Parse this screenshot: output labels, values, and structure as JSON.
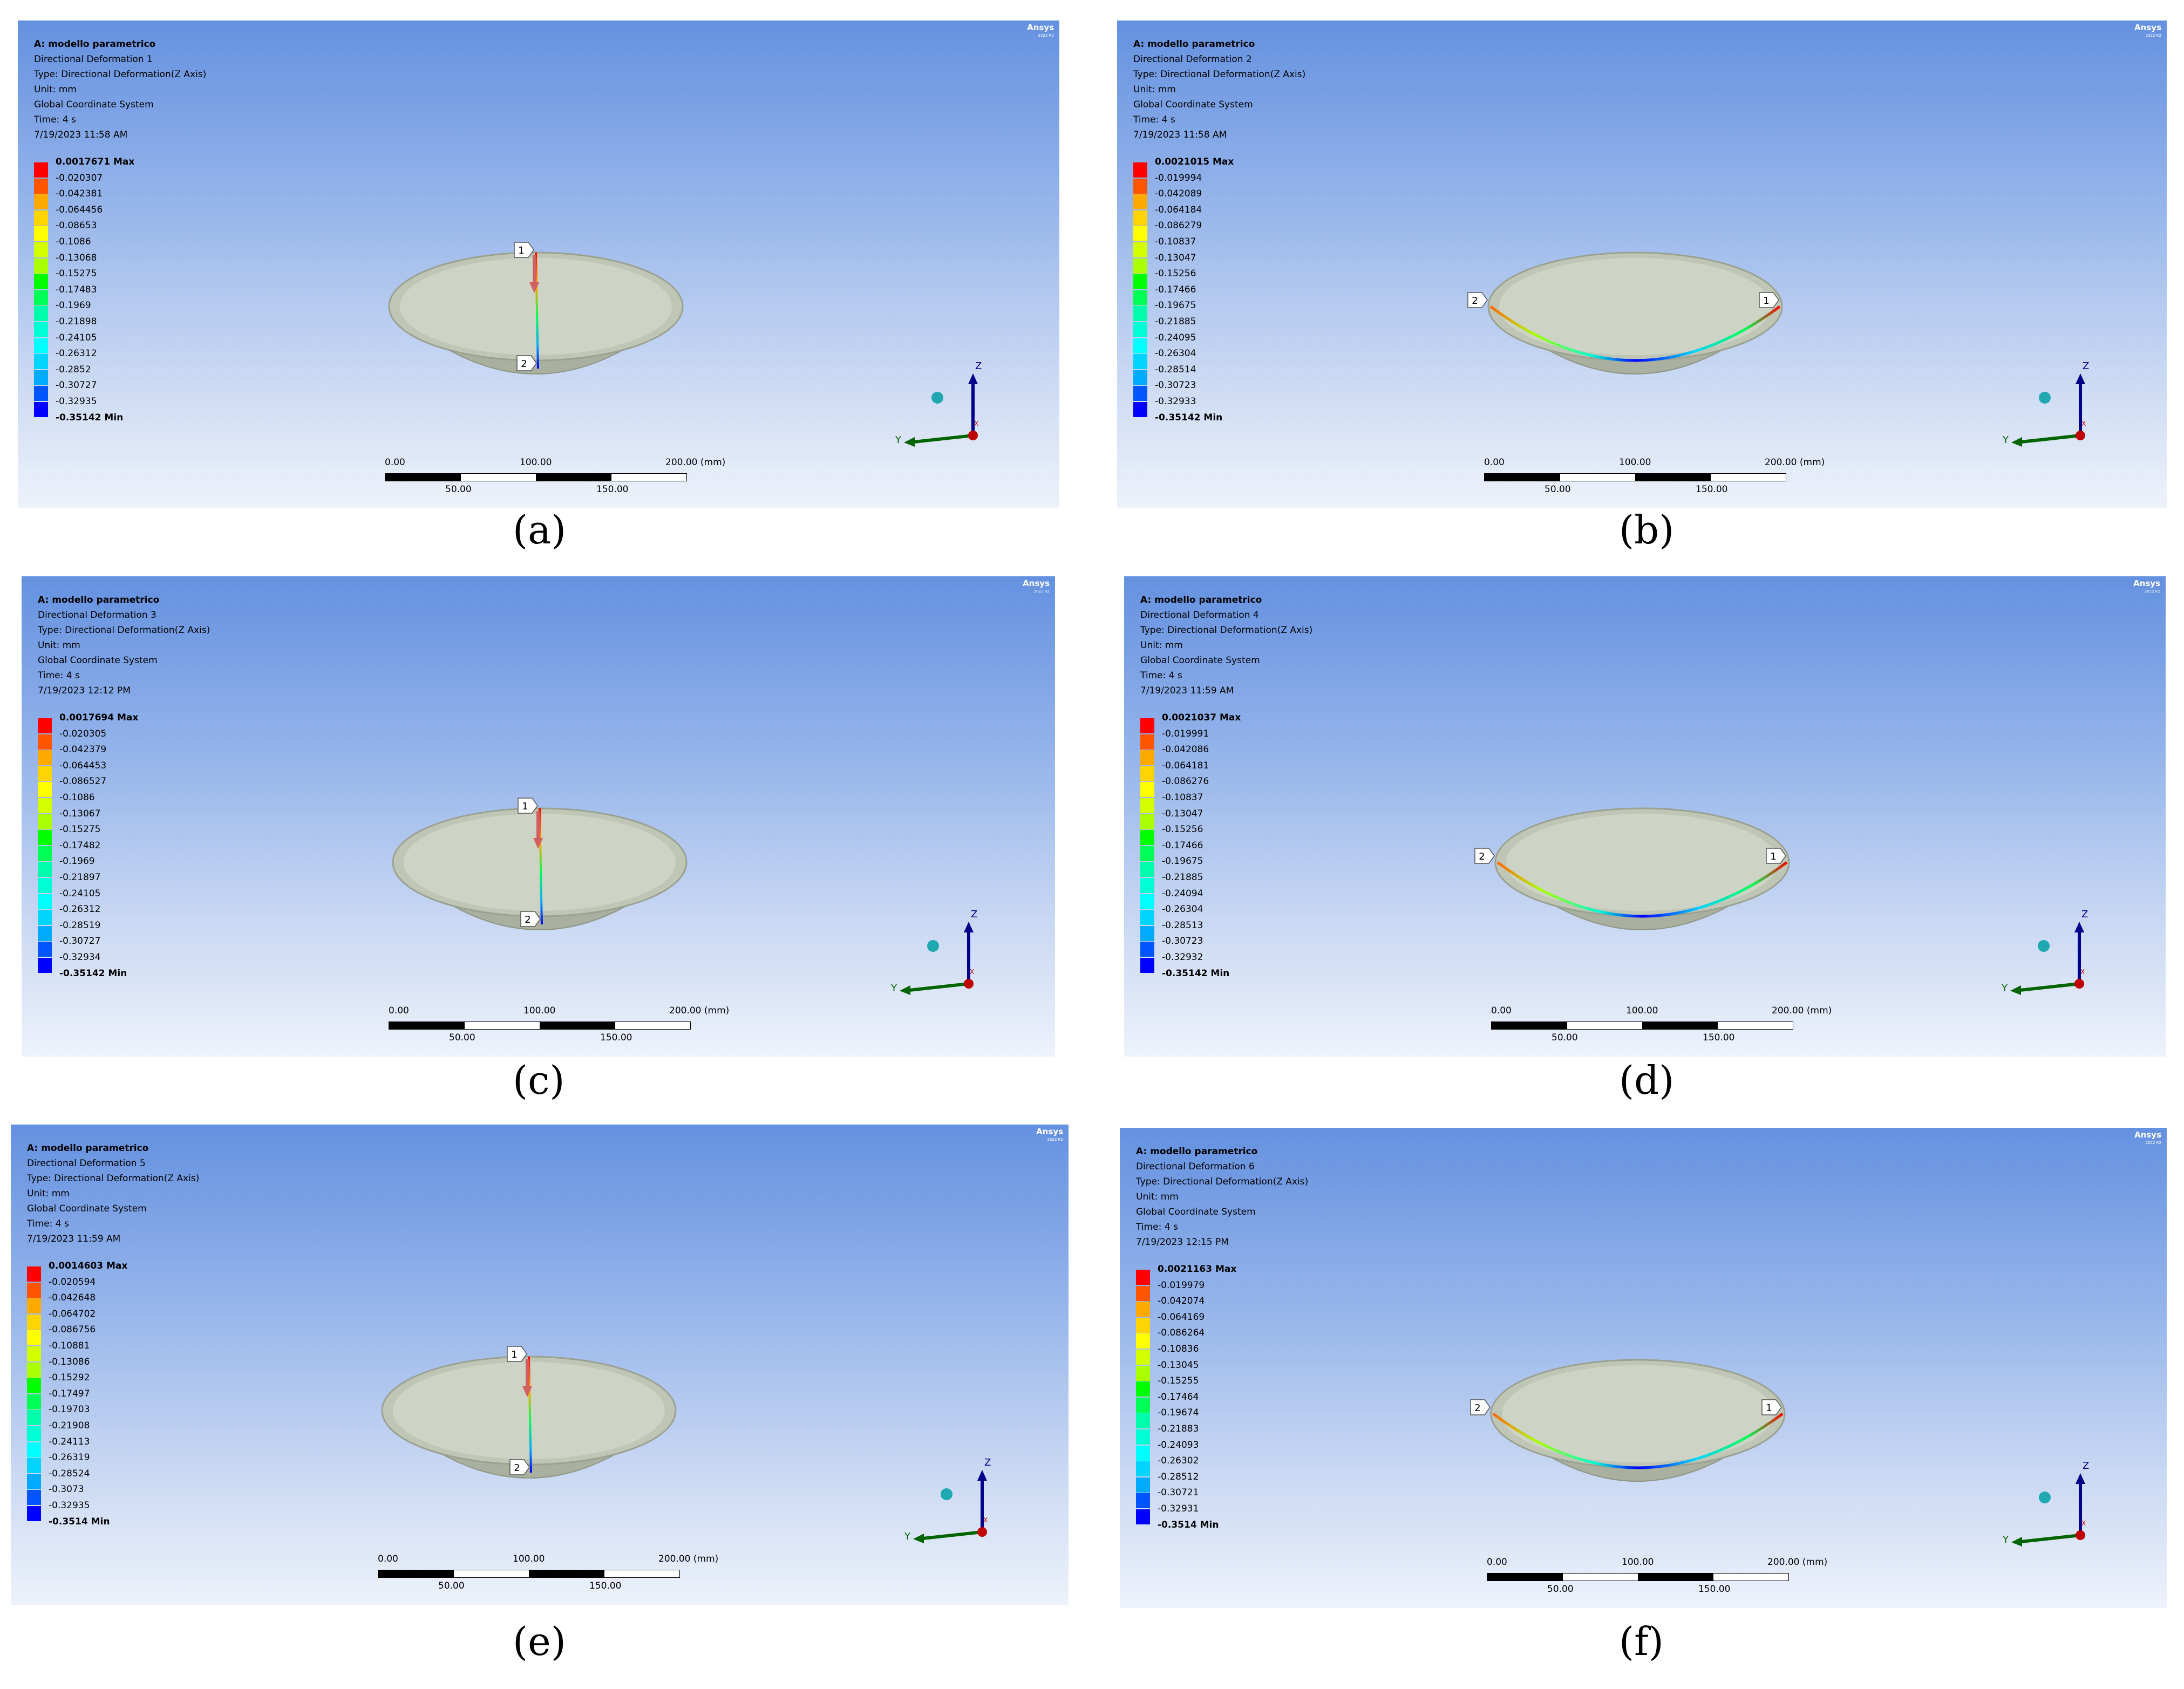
{
  "brand": {
    "name": "Ansys",
    "version": "2022 R2"
  },
  "colors": {
    "legend_bands": [
      "#ff0000",
      "#ff5500",
      "#ffaa00",
      "#ffd400",
      "#ffff00",
      "#d4ff00",
      "#aaff00",
      "#00ff00",
      "#00ff55",
      "#00ffaa",
      "#00ffd4",
      "#00ffff",
      "#00d4ff",
      "#00aaff",
      "#0055ff",
      "#0000ff"
    ],
    "x_axis": "#c00000",
    "y_axis": "#006400",
    "z_axis": "#00008b",
    "dish": "#c8cfc0"
  },
  "panels": [
    {
      "caption": "(a)",
      "info": [
        "A: modello parametrico",
        "Directional Deformation 1",
        "Type: Directional Deformation(Z Axis)",
        "Unit: mm",
        "Global Coordinate System",
        "Time: 4 s",
        "7/19/2023 11:58 AM"
      ],
      "legend": [
        "0.0017671 Max",
        "-0.020307",
        "-0.042381",
        "-0.064456",
        "-0.08653",
        "-0.1086",
        "-0.13068",
        "-0.15275",
        "-0.17483",
        "-0.1969",
        "-0.21898",
        "-0.24105",
        "-0.26312",
        "-0.2852",
        "-0.30727",
        "-0.32935",
        "-0.35142 Min"
      ],
      "path": "vertical",
      "probe_labels": [
        "1",
        "2"
      ],
      "triad": [
        "Z",
        "Y",
        "X"
      ],
      "scale_top": [
        "0.00",
        "100.00",
        "200.00 (mm)"
      ],
      "scale_bottom": [
        "50.00",
        "150.00"
      ]
    },
    {
      "caption": "(b)",
      "info": [
        "A: modello parametrico",
        "Directional Deformation 2",
        "Type: Directional Deformation(Z Axis)",
        "Unit: mm",
        "Global Coordinate System",
        "Time: 4 s",
        "7/19/2023 11:58 AM"
      ],
      "legend": [
        "0.0021015 Max",
        "-0.019994",
        "-0.042089",
        "-0.064184",
        "-0.086279",
        "-0.10837",
        "-0.13047",
        "-0.15256",
        "-0.17466",
        "-0.19675",
        "-0.21885",
        "-0.24095",
        "-0.26304",
        "-0.28514",
        "-0.30723",
        "-0.32933",
        "-0.35142 Min"
      ],
      "path": "arc",
      "probe_labels": [
        "1",
        "2"
      ],
      "triad": [
        "Z",
        "Y",
        "X"
      ],
      "scale_top": [
        "0.00",
        "100.00",
        "200.00 (mm)"
      ],
      "scale_bottom": [
        "50.00",
        "150.00"
      ]
    },
    {
      "caption": "(c)",
      "info": [
        "A: modello parametrico",
        "Directional Deformation 3",
        "Type: Directional Deformation(Z Axis)",
        "Unit: mm",
        "Global Coordinate System",
        "Time: 4 s",
        "7/19/2023 12:12 PM"
      ],
      "legend": [
        "0.0017694 Max",
        "-0.020305",
        "-0.042379",
        "-0.064453",
        "-0.086527",
        "-0.1086",
        "-0.13067",
        "-0.15275",
        "-0.17482",
        "-0.1969",
        "-0.21897",
        "-0.24105",
        "-0.26312",
        "-0.28519",
        "-0.30727",
        "-0.32934",
        "-0.35142 Min"
      ],
      "path": "vertical",
      "probe_labels": [
        "1",
        "2"
      ],
      "triad": [
        "Z",
        "Y",
        "X"
      ],
      "scale_top": [
        "0.00",
        "100.00",
        "200.00 (mm)"
      ],
      "scale_bottom": [
        "50.00",
        "150.00"
      ]
    },
    {
      "caption": "(d)",
      "info": [
        "A: modello parametrico",
        "Directional Deformation 4",
        "Type: Directional Deformation(Z Axis)",
        "Unit: mm",
        "Global Coordinate System",
        "Time: 4 s",
        "7/19/2023 11:59 AM"
      ],
      "legend": [
        "0.0021037 Max",
        "-0.019991",
        "-0.042086",
        "-0.064181",
        "-0.086276",
        "-0.10837",
        "-0.13047",
        "-0.15256",
        "-0.17466",
        "-0.19675",
        "-0.21885",
        "-0.24094",
        "-0.26304",
        "-0.28513",
        "-0.30723",
        "-0.32932",
        "-0.35142 Min"
      ],
      "path": "arc",
      "probe_labels": [
        "1",
        "2"
      ],
      "triad": [
        "Z",
        "Y",
        "X"
      ],
      "scale_top": [
        "0.00",
        "100.00",
        "200.00 (mm)"
      ],
      "scale_bottom": [
        "50.00",
        "150.00"
      ]
    },
    {
      "caption": "(e)",
      "info": [
        "A: modello parametrico",
        "Directional Deformation 5",
        "Type: Directional Deformation(Z Axis)",
        "Unit: mm",
        "Global Coordinate System",
        "Time: 4 s",
        "7/19/2023 11:59 AM"
      ],
      "legend": [
        "0.0014603 Max",
        "-0.020594",
        "-0.042648",
        "-0.064702",
        "-0.086756",
        "-0.10881",
        "-0.13086",
        "-0.15292",
        "-0.17497",
        "-0.19703",
        "-0.21908",
        "-0.24113",
        "-0.26319",
        "-0.28524",
        "-0.3073",
        "-0.32935",
        "-0.3514 Min"
      ],
      "path": "vertical",
      "probe_labels": [
        "1",
        "2"
      ],
      "triad": [
        "Z",
        "Y",
        "X"
      ],
      "scale_top": [
        "0.00",
        "100.00",
        "200.00 (mm)"
      ],
      "scale_bottom": [
        "50.00",
        "150.00"
      ]
    },
    {
      "caption": "(f)",
      "info": [
        "A: modello parametrico",
        "Directional Deformation 6",
        "Type: Directional Deformation(Z Axis)",
        "Unit: mm",
        "Global Coordinate System",
        "Time: 4 s",
        "7/19/2023 12:15 PM"
      ],
      "legend": [
        "0.0021163 Max",
        "-0.019979",
        "-0.042074",
        "-0.064169",
        "-0.086264",
        "-0.10836",
        "-0.13045",
        "-0.15255",
        "-0.17464",
        "-0.19674",
        "-0.21883",
        "-0.24093",
        "-0.26302",
        "-0.28512",
        "-0.30721",
        "-0.32931",
        "-0.3514 Min"
      ],
      "path": "arc",
      "probe_labels": [
        "1",
        "2"
      ],
      "triad": [
        "Z",
        "Y",
        "X"
      ],
      "scale_top": [
        "0.00",
        "100.00",
        "200.00 (mm)"
      ],
      "scale_bottom": [
        "50.00",
        "150.00"
      ]
    }
  ]
}
